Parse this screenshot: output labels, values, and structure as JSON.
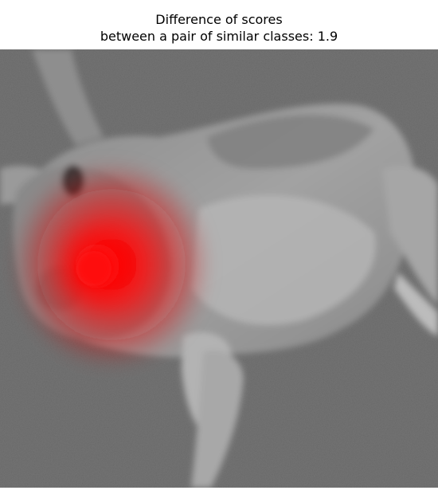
{
  "figure": {
    "title_line1": "Difference of scores",
    "title_line2": "between a pair of similar classes: 1.9"
  },
  "image": {
    "subject": "gray-rabbit-lying-on-carpet",
    "overlay": "red-saliency-heatmap",
    "colors": {
      "carpet": "#6f6f6f",
      "fur": "#9a9a9a",
      "fur_light": "#bdbdbd",
      "heat": "#ff0000"
    }
  }
}
